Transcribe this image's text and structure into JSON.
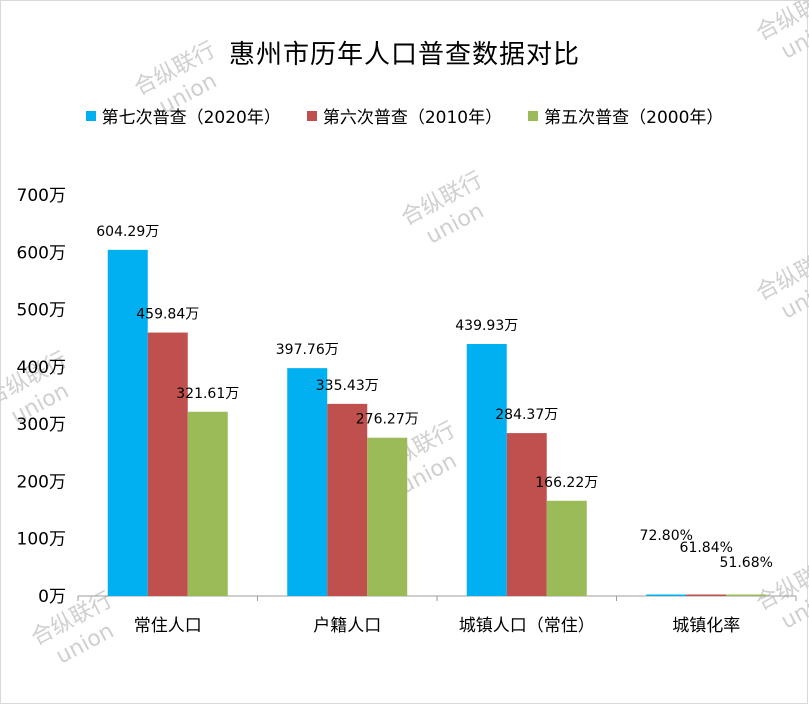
{
  "chart_data": {
    "type": "bar",
    "title": "惠州市历年人口普查数据对比",
    "categories": [
      "常住人口",
      "户籍人口",
      "城镇人口（常住）",
      "城镇化率"
    ],
    "series": [
      {
        "name": "第七次普查（2020年）",
        "color": "#00b0f0",
        "values": [
          604.29,
          397.76,
          439.93,
          72.8
        ],
        "labels": [
          "604.29万",
          "397.76万",
          "439.93万",
          "72.80%"
        ]
      },
      {
        "name": "第六次普查（2010年）",
        "color": "#c0504d",
        "values": [
          459.84,
          335.43,
          284.37,
          61.84
        ],
        "labels": [
          "459.84万",
          "335.43万",
          "284.37万",
          "61.84%"
        ]
      },
      {
        "name": "第五次普查（2000年）",
        "color": "#9bbb59",
        "values": [
          321.61,
          276.27,
          166.22,
          51.68
        ],
        "labels": [
          "321.61万",
          "276.27万",
          "166.22万",
          "51.68%"
        ]
      }
    ],
    "ylim": [
      0,
      700
    ],
    "yticks": [
      0,
      100,
      200,
      300,
      400,
      500,
      600,
      700
    ],
    "ytick_labels": [
      "0万",
      "100万",
      "200万",
      "300万",
      "400万",
      "500万",
      "600万",
      "700万"
    ],
    "percent_category_index": 3,
    "legend_position": "top",
    "grid": false
  },
  "watermark": {
    "line1": "合纵联行",
    "line2": "union"
  }
}
